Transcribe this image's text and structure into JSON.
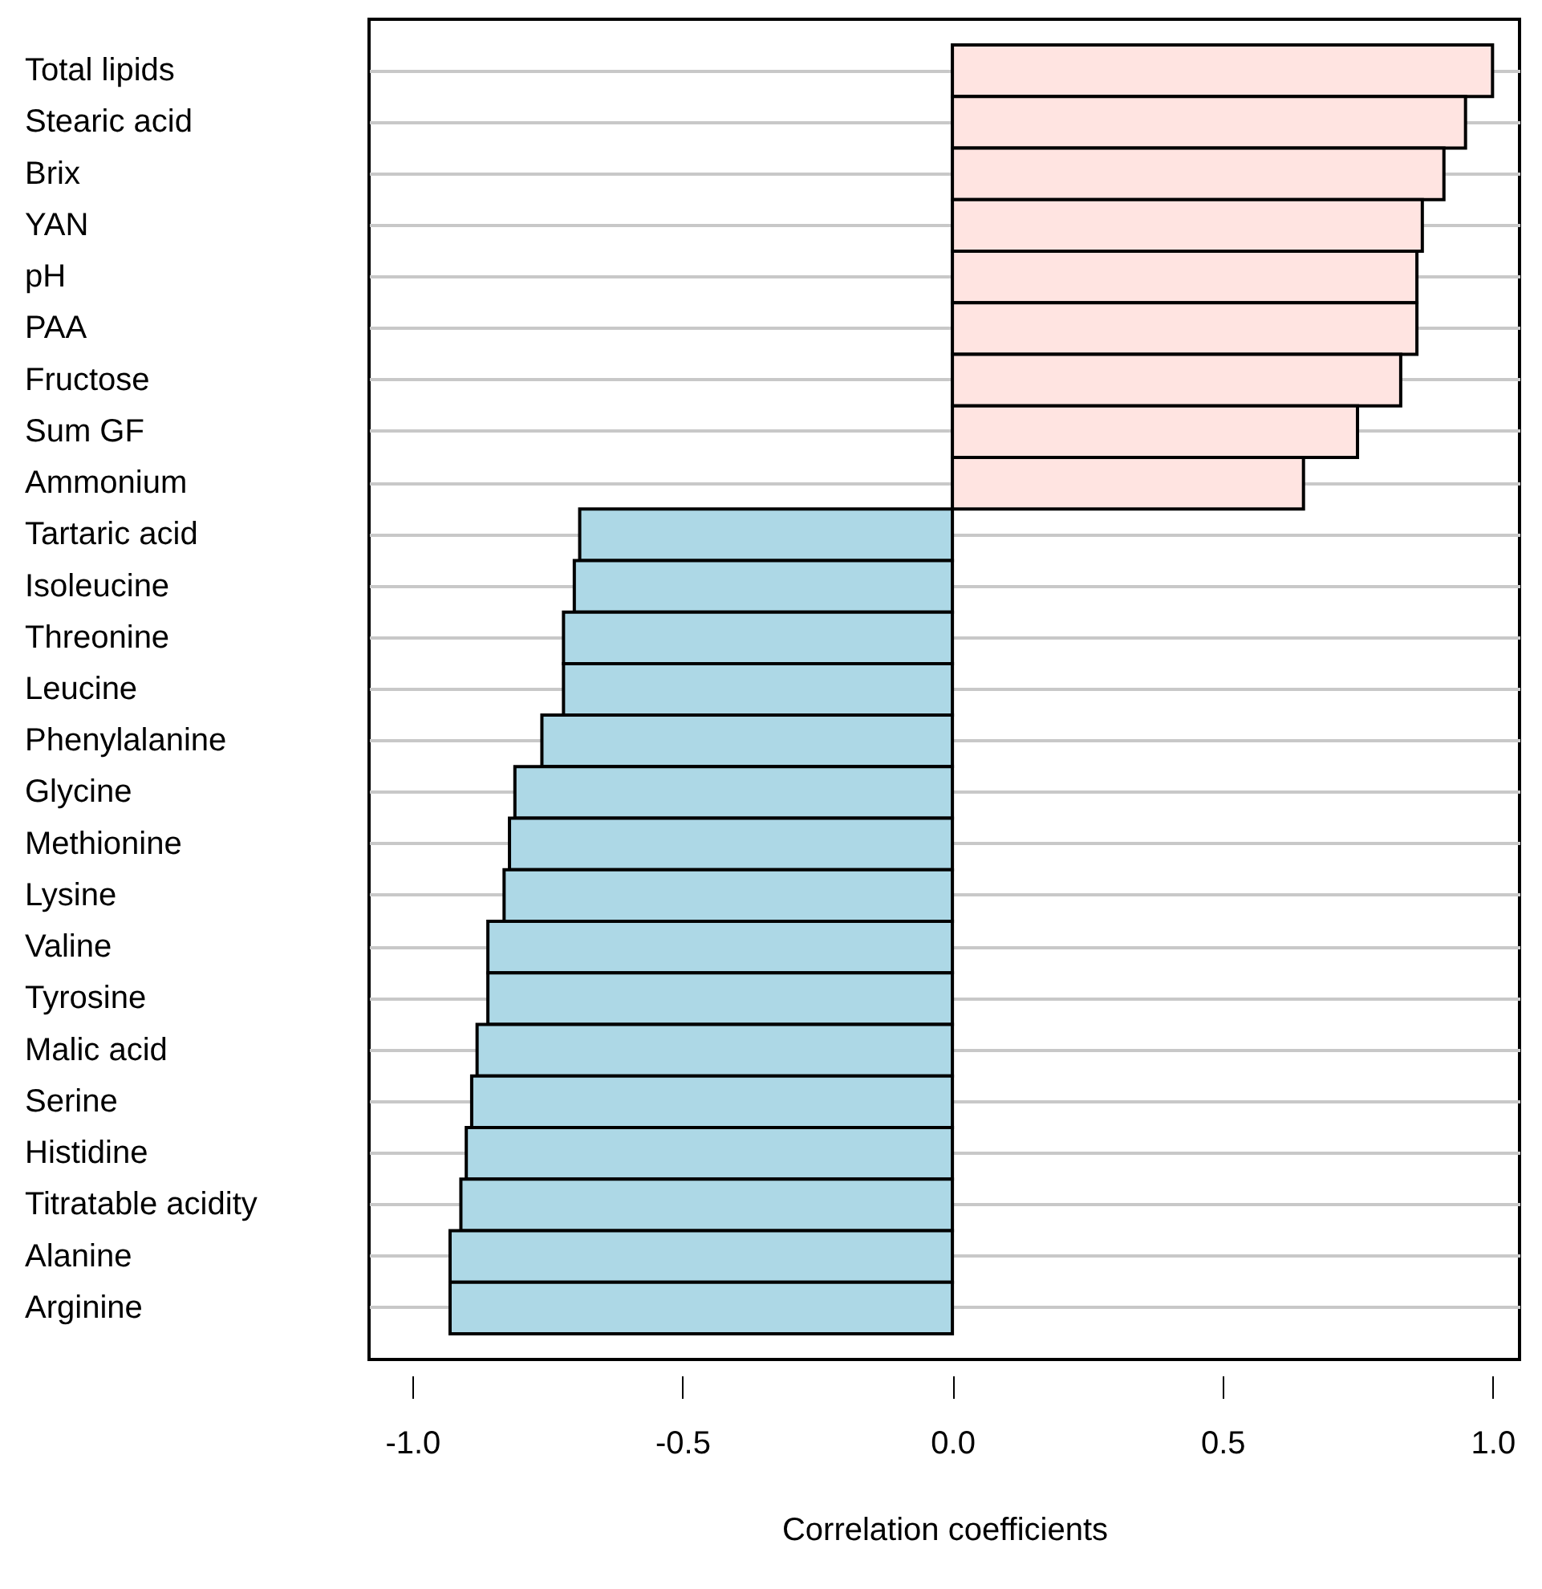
{
  "chart_data": {
    "type": "bar",
    "orientation": "horizontal",
    "xlabel": "Correlation coefficients",
    "categories": [
      "Total lipids",
      "Stearic acid",
      "Brix",
      "YAN",
      "pH",
      "PAA",
      "Fructose",
      "Sum GF",
      "Ammonium",
      "Tartaric acid",
      "Isoleucine",
      "Threonine",
      "Leucine",
      "Phenylalanine",
      "Glycine",
      "Methionine",
      "Lysine",
      "Valine",
      "Tyrosine",
      "Malic acid",
      "Serine",
      "Histidine",
      "Titratable acidity",
      "Alanine",
      "Arginine"
    ],
    "values": [
      1.0,
      0.95,
      0.91,
      0.87,
      0.86,
      0.86,
      0.83,
      0.75,
      0.65,
      -0.69,
      -0.7,
      -0.72,
      -0.72,
      -0.76,
      -0.81,
      -0.82,
      -0.83,
      -0.86,
      -0.86,
      -0.88,
      -0.89,
      -0.9,
      -0.91,
      -0.93,
      -0.93
    ],
    "colors": [
      "#ffe4e1",
      "#ffe4e1",
      "#ffe4e1",
      "#ffe4e1",
      "#ffe4e1",
      "#ffe4e1",
      "#ffe4e1",
      "#ffe4e1",
      "#ffe4e1",
      "#add8e6",
      "#add8e6",
      "#add8e6",
      "#add8e6",
      "#add8e6",
      "#add8e6",
      "#add8e6",
      "#add8e6",
      "#add8e6",
      "#add8e6",
      "#add8e6",
      "#add8e6",
      "#add8e6",
      "#add8e6",
      "#add8e6",
      "#add8e6"
    ],
    "xlim": [
      -1.08,
      1.05
    ],
    "xticks": [
      {
        "value": -1,
        "label": "-1.0"
      },
      {
        "value": -0.5,
        "label": "-0.5"
      },
      {
        "value": 0,
        "label": "0.0"
      },
      {
        "value": 0.5,
        "label": "0.5"
      },
      {
        "value": 1,
        "label": "1.0"
      }
    ],
    "grid": "y"
  }
}
